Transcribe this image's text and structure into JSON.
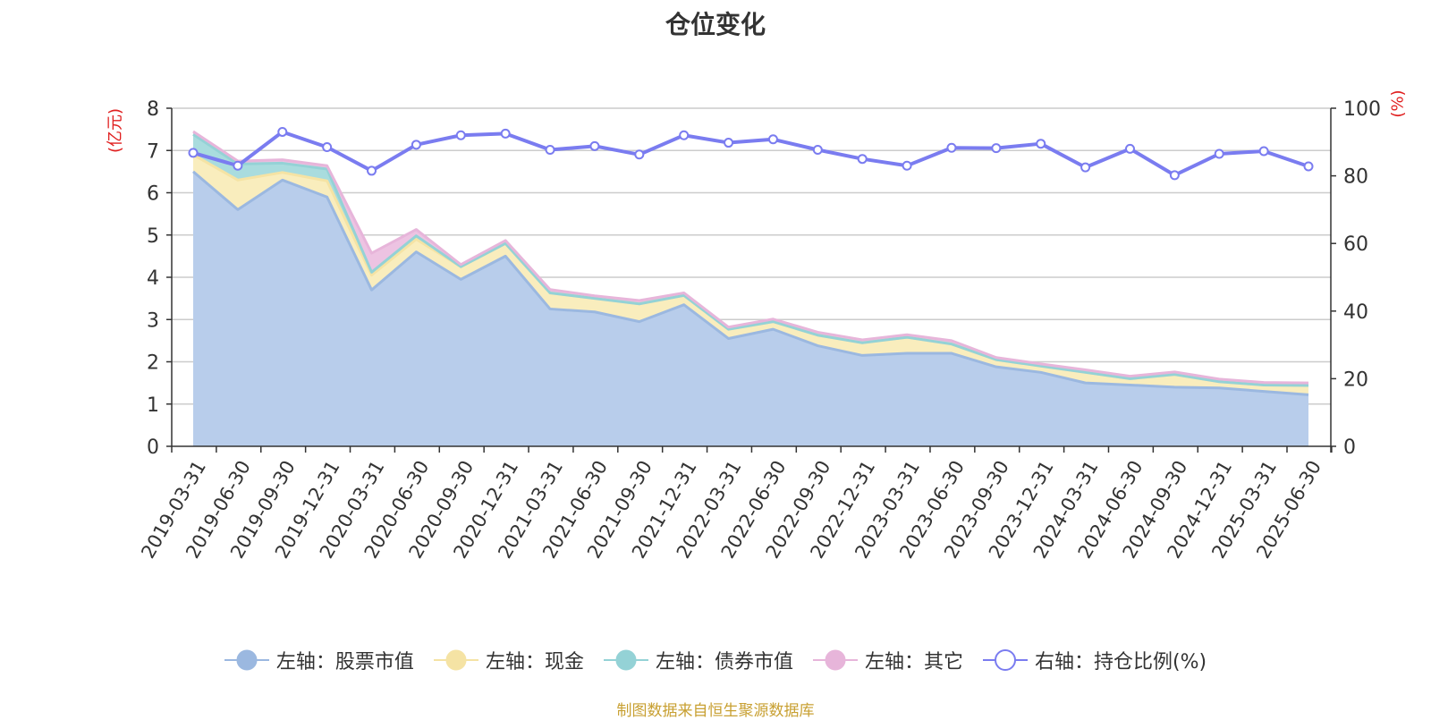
{
  "title": "仓位变化",
  "source": "制图数据来自恒生聚源数据库",
  "chart_data": {
    "type": "area",
    "title": "仓位变化",
    "x": [
      "2019-03-31",
      "2019-06-30",
      "2019-09-30",
      "2019-12-31",
      "2020-03-31",
      "2020-06-30",
      "2020-09-30",
      "2020-12-31",
      "2021-03-31",
      "2021-06-30",
      "2021-09-30",
      "2021-12-31",
      "2022-03-31",
      "2022-06-30",
      "2022-09-30",
      "2022-12-31",
      "2023-03-31",
      "2023-06-30",
      "2023-09-30",
      "2023-12-31",
      "2024-03-31",
      "2024-06-30",
      "2024-09-30",
      "2024-12-31",
      "2025-03-31",
      "2025-06-30"
    ],
    "left_axis": {
      "label": "(亿元)",
      "ylim": [
        0,
        8
      ],
      "ticks": [
        "0",
        "1",
        "2",
        "3",
        "4",
        "5",
        "6",
        "7",
        "8"
      ]
    },
    "right_axis": {
      "label": "(%)",
      "ylim": [
        0,
        100
      ],
      "ticks": [
        "0",
        "20",
        "40",
        "60",
        "80",
        "100"
      ]
    },
    "series": [
      {
        "name": "左轴：股票市值",
        "axis": "left",
        "stack": true,
        "color": "#9bb8e0",
        "fill": "#b8cdeb",
        "values": [
          6.5,
          5.6,
          6.3,
          5.9,
          3.7,
          4.6,
          3.95,
          4.5,
          3.25,
          3.18,
          2.95,
          3.35,
          2.55,
          2.77,
          2.38,
          2.15,
          2.2,
          2.2,
          1.88,
          1.75,
          1.5,
          1.45,
          1.4,
          1.38,
          1.3,
          1.22
        ]
      },
      {
        "name": "左轴：现金",
        "axis": "left",
        "stack": true,
        "color": "#f5e3a4",
        "fill": "#f9edbd",
        "values": [
          0.4,
          0.7,
          0.18,
          0.38,
          0.35,
          0.3,
          0.3,
          0.3,
          0.38,
          0.32,
          0.42,
          0.22,
          0.22,
          0.18,
          0.25,
          0.3,
          0.38,
          0.22,
          0.17,
          0.15,
          0.25,
          0.15,
          0.3,
          0.15,
          0.15,
          0.22
        ]
      },
      {
        "name": "左轴：债券市值",
        "axis": "left",
        "stack": true,
        "color": "#94d2d6",
        "fill": "#a9dcde",
        "values": [
          0.48,
          0.38,
          0.22,
          0.28,
          0.07,
          0.08,
          0,
          0,
          0,
          0,
          0,
          0,
          0,
          0,
          0,
          0,
          0,
          0,
          0,
          0,
          0,
          0,
          0,
          0,
          0,
          0
        ]
      },
      {
        "name": "左轴：其它",
        "axis": "left",
        "stack": true,
        "color": "#e7b5da",
        "fill": "#edc3e2",
        "values": [
          0.07,
          0.07,
          0.08,
          0.08,
          0.45,
          0.15,
          0.05,
          0.07,
          0.08,
          0.06,
          0.08,
          0.06,
          0.05,
          0.06,
          0.07,
          0.07,
          0.06,
          0.08,
          0.05,
          0.05,
          0.06,
          0.06,
          0.06,
          0.06,
          0.06,
          0.06
        ]
      },
      {
        "name": "右轴：持仓比例(%)",
        "axis": "right",
        "stack": false,
        "color": "#7a7cf0",
        "values": [
          86.8,
          83,
          93,
          88.5,
          81.5,
          89.2,
          92,
          92.5,
          87.7,
          88.8,
          86.3,
          92,
          89.8,
          90.8,
          87.7,
          85,
          83,
          88.3,
          88.2,
          89.5,
          82.5,
          88,
          80.2,
          86.5,
          87.3,
          82.8
        ]
      }
    ],
    "grid": true,
    "legend_position": "bottom"
  }
}
